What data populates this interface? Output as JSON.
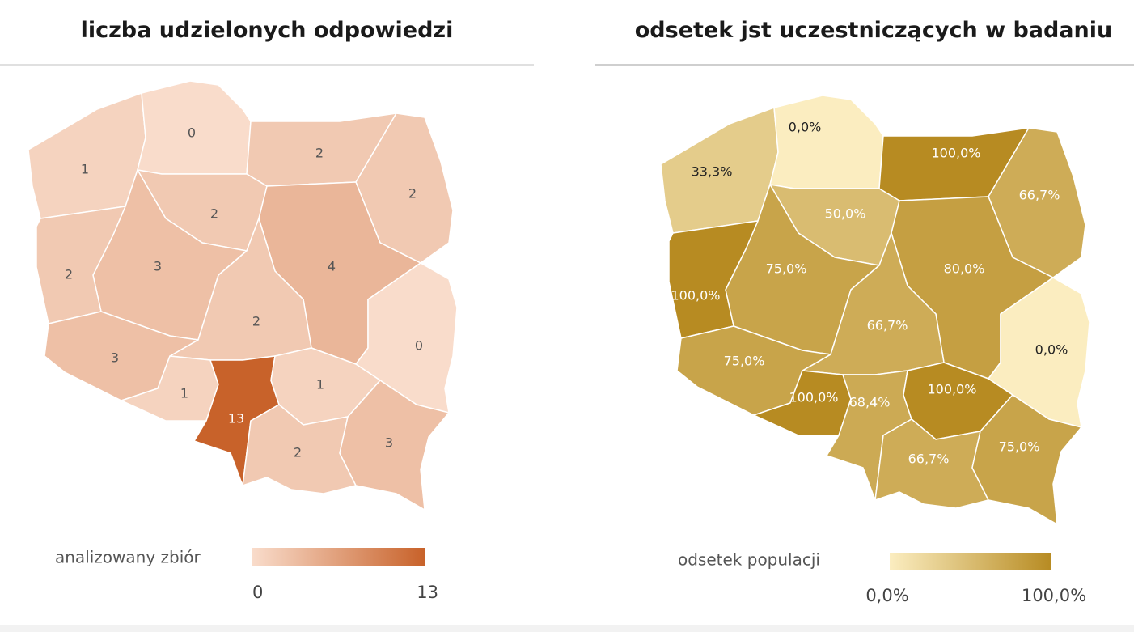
{
  "maps": [
    {
      "title": "liczba udzielonych odpowiedzi",
      "regions": [
        1,
        0,
        2,
        2,
        2,
        3,
        2,
        4,
        2,
        0,
        3,
        1,
        13,
        1,
        2,
        3
      ],
      "legend": {
        "title": "analizowany zbiór",
        "range": [
          0,
          13
        ],
        "colors": [
          "#f9dccb",
          "#c8622a"
        ]
      }
    },
    {
      "title": "odsetek jst uczestniczących w badaniu",
      "regions": [
        {
          "value": 33.3,
          "label": "33,3%"
        },
        {
          "value": 0,
          "label": "0,0%"
        },
        {
          "value": 100,
          "label": "100,0%"
        },
        {
          "value": 66.7,
          "label": "66,7%"
        },
        {
          "value": 50,
          "label": "50,0%"
        },
        {
          "value": 75,
          "label": "75,0%"
        },
        {
          "value": 100,
          "label": "100,0%"
        },
        {
          "value": 80,
          "label": "80,0%"
        },
        {
          "value": 66.7,
          "label": "66,7%"
        },
        {
          "value": 0,
          "label": "0,0%"
        },
        {
          "value": 75,
          "label": "75,0%"
        },
        {
          "value": 100,
          "label": "100,0%"
        },
        {
          "value": 68.4,
          "label": "68,4%"
        },
        {
          "value": 100,
          "label": "100,0%"
        },
        {
          "value": 66.7,
          "label": "66,7%"
        },
        {
          "value": 75,
          "label": "75,0%"
        }
      ],
      "legend": {
        "title": "odsetek populacji",
        "range": [
          {
            "value": 0,
            "label": "0,0%"
          },
          {
            "value": 100,
            "label": "100,0%"
          }
        ],
        "colors": [
          "#fbedc0",
          "#b78b22"
        ]
      }
    }
  ]
}
